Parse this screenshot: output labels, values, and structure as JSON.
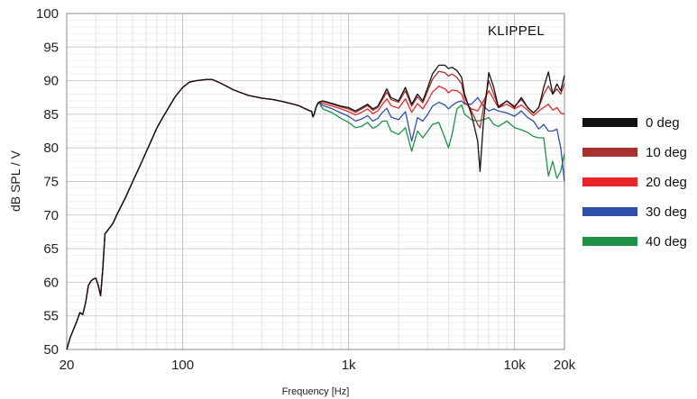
{
  "chart_data": {
    "type": "line",
    "title": "",
    "brand_label": "KLIPPEL",
    "xlabel": "Frequency [Hz]",
    "ylabel": "dB SPL / V",
    "x_scale": "log",
    "xlim": [
      20,
      20000
    ],
    "ylim": [
      50,
      100
    ],
    "x_ticks": [
      {
        "value": 20,
        "label": "20"
      },
      {
        "value": 100,
        "label": "100"
      },
      {
        "value": 1000,
        "label": "1k"
      },
      {
        "value": 10000,
        "label": "10k"
      },
      {
        "value": 20000,
        "label": "20k"
      }
    ],
    "y_ticks": [
      {
        "value": 50,
        "label": "50"
      },
      {
        "value": 55,
        "label": "55"
      },
      {
        "value": 60,
        "label": "60"
      },
      {
        "value": 65,
        "label": "65"
      },
      {
        "value": 70,
        "label": "70"
      },
      {
        "value": 75,
        "label": "75"
      },
      {
        "value": 80,
        "label": "80"
      },
      {
        "value": 85,
        "label": "85"
      },
      {
        "value": 90,
        "label": "90"
      },
      {
        "value": 95,
        "label": "95"
      },
      {
        "value": 100,
        "label": "100"
      }
    ],
    "grid": true,
    "legend_position": "right",
    "base_curve": {
      "x": [
        20,
        21,
        22,
        23,
        24,
        25,
        26,
        27,
        28,
        29,
        30,
        31,
        32,
        33,
        34,
        35,
        36,
        37,
        38,
        40,
        45,
        50,
        55,
        60,
        65,
        70,
        75,
        80,
        90,
        100,
        110,
        120,
        130,
        140,
        150,
        160,
        170,
        180,
        200,
        220,
        250,
        300,
        350,
        400,
        450,
        500,
        550,
        600,
        610,
        620,
        640,
        660
      ],
      "y": [
        50,
        51.8,
        53,
        54.2,
        55.5,
        55.2,
        57,
        59.5,
        60.2,
        60.5,
        60.6,
        59.5,
        58,
        62,
        67.2,
        67.6,
        68,
        68.4,
        68.8,
        70,
        72.5,
        75,
        77.2,
        79.3,
        81.2,
        83,
        84.3,
        85.5,
        87.6,
        89,
        89.8,
        90,
        90.1,
        90.2,
        90.2,
        89.9,
        89.6,
        89.3,
        88.7,
        88.3,
        87.8,
        87.4,
        87.2,
        86.9,
        86.6,
        86.3,
        85.8,
        85.4,
        84.6,
        85,
        86.2,
        86.8
      ]
    },
    "series": [
      {
        "name": "0 deg",
        "color": "#111111",
        "x": [
          660,
          700,
          800,
          900,
          1000,
          1100,
          1200,
          1300,
          1400,
          1500,
          1600,
          1700,
          1800,
          2000,
          2200,
          2400,
          2600,
          2800,
          3000,
          3200,
          3500,
          3800,
          4000,
          4200,
          4500,
          4800,
          5000,
          5500,
          6000,
          6200,
          6500,
          7000,
          7500,
          8000,
          9000,
          10000,
          11000,
          12000,
          13000,
          14000,
          15000,
          16000,
          17000,
          18000,
          19000,
          20000
        ],
        "y": [
          86.8,
          87,
          86.6,
          86.2,
          86,
          85.5,
          86,
          86.5,
          85.8,
          86.2,
          87.5,
          88.8,
          87.5,
          87,
          89,
          86.5,
          88,
          87,
          89,
          91,
          92.3,
          92.3,
          91.8,
          92,
          91.5,
          90.5,
          88,
          85,
          81,
          76.5,
          84,
          91.2,
          89,
          86,
          87,
          86,
          87.5,
          86,
          85.2,
          86,
          89,
          91.3,
          88,
          89.5,
          88.5,
          90.8
        ]
      },
      {
        "name": "10 deg",
        "color": "#a8322d",
        "x": [
          660,
          700,
          800,
          900,
          1000,
          1100,
          1200,
          1300,
          1400,
          1500,
          1600,
          1700,
          1800,
          2000,
          2200,
          2400,
          2600,
          2800,
          3000,
          3200,
          3500,
          3800,
          4000,
          4200,
          4500,
          4800,
          5000,
          5500,
          6000,
          6200,
          6500,
          7000,
          7500,
          8000,
          9000,
          10000,
          11000,
          12000,
          13000,
          14000,
          15000,
          16000,
          17000,
          18000,
          19000,
          20000
        ],
        "y": [
          86.7,
          86.9,
          86.5,
          86.1,
          85.8,
          85.3,
          85.8,
          86.3,
          85.6,
          86,
          87.2,
          88.3,
          87.2,
          86.8,
          88.5,
          86.2,
          87.6,
          86.7,
          88.5,
          90.2,
          91.4,
          91.2,
          90.7,
          91,
          90.5,
          89.5,
          87.5,
          85.5,
          83.5,
          83,
          86,
          90,
          88,
          86.2,
          87,
          86.2,
          87.2,
          86,
          85.2,
          86,
          88,
          89.2,
          88,
          88.8,
          88,
          89.6
        ]
      },
      {
        "name": "20 deg",
        "color": "#e8262a",
        "x": [
          660,
          700,
          800,
          900,
          1000,
          1100,
          1200,
          1300,
          1400,
          1500,
          1600,
          1700,
          1800,
          2000,
          2200,
          2400,
          2600,
          2800,
          3000,
          3200,
          3500,
          3800,
          4000,
          4200,
          4500,
          4800,
          5000,
          5500,
          6000,
          6500,
          7000,
          7500,
          8000,
          9000,
          10000,
          11000,
          12000,
          13000,
          14000,
          15000,
          16000,
          17000,
          18000,
          19000,
          20000
        ],
        "y": [
          86.5,
          86.6,
          86.2,
          85.8,
          85.4,
          84.9,
          85.3,
          85.8,
          85.1,
          85.5,
          86.5,
          87.3,
          86.3,
          85.9,
          87.3,
          85.3,
          86.6,
          85.8,
          87,
          88.3,
          89.2,
          88.8,
          88.2,
          88.6,
          88.5,
          88,
          86.8,
          85.8,
          85.5,
          87,
          88.5,
          87.2,
          86,
          86.5,
          85.8,
          86.4,
          85.6,
          84.8,
          85.5,
          86,
          86.5,
          85.6,
          86,
          85.2,
          85
        ]
      },
      {
        "name": "30 deg",
        "color": "#3050a8",
        "x": [
          660,
          700,
          800,
          900,
          1000,
          1100,
          1200,
          1300,
          1400,
          1500,
          1600,
          1700,
          1800,
          2000,
          2200,
          2400,
          2600,
          2800,
          3000,
          3200,
          3500,
          3800,
          4000,
          4200,
          4500,
          4800,
          5000,
          5500,
          6000,
          6500,
          7000,
          7500,
          8000,
          9000,
          10000,
          11000,
          12000,
          13000,
          14000,
          15000,
          16000,
          17000,
          18000,
          19000,
          20000
        ],
        "y": [
          86.2,
          86.3,
          85.8,
          85.2,
          84.7,
          84,
          84.3,
          84.8,
          84,
          84.4,
          85.3,
          85.9,
          84.6,
          84.2,
          85.4,
          81,
          84.5,
          84,
          85,
          86.2,
          86.8,
          86.4,
          85.8,
          86.3,
          86.8,
          87,
          86.5,
          86.5,
          87.5,
          86.2,
          85.5,
          85.8,
          85.5,
          85.2,
          84.7,
          85.5,
          84.5,
          84,
          82.8,
          83.5,
          82.5,
          82.5,
          82.8,
          80,
          75
        ]
      },
      {
        "name": "40 deg",
        "color": "#1c9344",
        "x": [
          660,
          700,
          800,
          900,
          1000,
          1100,
          1200,
          1300,
          1400,
          1500,
          1600,
          1700,
          1800,
          2000,
          2200,
          2400,
          2600,
          2800,
          3000,
          3200,
          3500,
          3800,
          4000,
          4200,
          4500,
          4800,
          5000,
          5500,
          6000,
          6500,
          7000,
          7500,
          8000,
          9000,
          10000,
          11000,
          12000,
          13000,
          14000,
          15000,
          16000,
          17000,
          18000,
          19000,
          20000
        ],
        "y": [
          85.8,
          85.8,
          85.2,
          84.4,
          83.8,
          83,
          83.2,
          83.8,
          82.9,
          83.3,
          84,
          84,
          82.5,
          82,
          83,
          79.5,
          82.5,
          81.5,
          82.5,
          83.5,
          83.8,
          81.5,
          80,
          82,
          85.8,
          86.4,
          85,
          84.2,
          84,
          84.2,
          84.5,
          83.5,
          83.2,
          84,
          83,
          82.7,
          82.3,
          81.7,
          81.5,
          81.5,
          75.8,
          78,
          75.5,
          76.5,
          79.2
        ]
      }
    ]
  }
}
